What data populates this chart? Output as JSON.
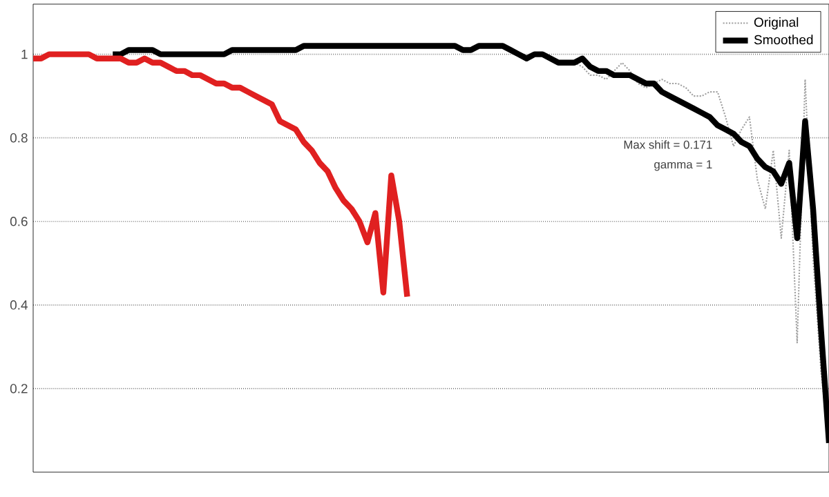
{
  "chart_data": {
    "type": "line",
    "categories": [
      null,
      null,
      null,
      null,
      null,
      null,
      null,
      null,
      null,
      null,
      null,
      null,
      null,
      null,
      null,
      null,
      null,
      null,
      null,
      null,
      null,
      null,
      null,
      null,
      null,
      null,
      null,
      null,
      null,
      null,
      null,
      null,
      null,
      null,
      null,
      null,
      null,
      null,
      null,
      null,
      null,
      null,
      null,
      null,
      null,
      null,
      null,
      null,
      null,
      null,
      null,
      null,
      null,
      null,
      null,
      null,
      null,
      null,
      null,
      null,
      null,
      null,
      null,
      null,
      null,
      null,
      null,
      null,
      null,
      null,
      null,
      null,
      null,
      null,
      null,
      null,
      null,
      null,
      null,
      null,
      null,
      null,
      null,
      null,
      null,
      null,
      null,
      null,
      null,
      null,
      null,
      null,
      null,
      null,
      null,
      null,
      null,
      null,
      null,
      null,
      null
    ],
    "ylim": [
      0,
      1.12
    ],
    "yticks": [
      0.2,
      0.4,
      0.6,
      {
        "value": 0.8,
        "label": "0.8"
      },
      1
    ],
    "grid": "y",
    "legend": "top right",
    "annotations": [
      "Max shift = 0.171",
      "gamma = 1"
    ],
    "series": [
      {
        "name": "Original",
        "color": "#a0a0a0",
        "line_style": "dotted",
        "values": [
          null,
          null,
          null,
          null,
          null,
          null,
          null,
          null,
          null,
          null,
          null,
          null,
          null,
          null,
          null,
          null,
          null,
          null,
          null,
          null,
          null,
          null,
          null,
          null,
          null,
          null,
          null,
          null,
          null,
          null,
          null,
          null,
          null,
          null,
          null,
          null,
          null,
          null,
          null,
          null,
          null,
          null,
          null,
          null,
          null,
          null,
          null,
          null,
          null,
          null,
          null,
          null,
          null,
          null,
          null,
          null,
          null,
          null,
          null,
          null,
          null,
          null,
          null,
          null,
          null,
          null,
          null,
          null,
          0.98,
          0.97,
          0.95,
          0.95,
          0.94,
          0.96,
          0.98,
          0.96,
          0.93,
          0.92,
          0.93,
          0.94,
          0.93,
          0.93,
          0.92,
          0.9,
          0.9,
          0.91,
          0.91,
          0.85,
          0.78,
          0.82,
          0.85,
          0.7,
          0.63,
          0.77,
          0.56,
          0.77,
          0.31,
          0.94,
          0.51,
          0.24,
          0.07
        ]
      },
      {
        "name": "Smoothed",
        "color": "#000000",
        "values": [
          null,
          null,
          null,
          null,
          null,
          null,
          null,
          null,
          null,
          null,
          1.0,
          1.0,
          1.01,
          1.01,
          1.01,
          1.01,
          1.0,
          1.0,
          1.0,
          1.0,
          1.0,
          1.0,
          1.0,
          1.0,
          1.0,
          1.01,
          1.01,
          1.01,
          1.01,
          1.01,
          1.01,
          1.01,
          1.01,
          1.01,
          1.02,
          1.02,
          1.02,
          1.02,
          1.02,
          1.02,
          1.02,
          1.02,
          1.02,
          1.02,
          1.02,
          1.02,
          1.02,
          1.02,
          1.02,
          1.02,
          1.02,
          1.02,
          1.02,
          1.02,
          1.01,
          1.01,
          1.02,
          1.02,
          1.02,
          1.02,
          1.01,
          1.0,
          0.99,
          1.0,
          1.0,
          0.99,
          0.98,
          0.98,
          0.98,
          0.99,
          0.97,
          0.96,
          0.96,
          0.95,
          0.95,
          0.95,
          0.94,
          0.93,
          0.93,
          0.91,
          0.9,
          0.89,
          0.88,
          0.87,
          0.86,
          0.85,
          0.83,
          0.82,
          0.81,
          0.79,
          0.78,
          0.75,
          0.73,
          0.72,
          0.69,
          0.74,
          0.56,
          0.84,
          0.63,
          0.34,
          0.07
        ]
      },
      {
        "color": "#e02020",
        "values": [
          0.99,
          0.99,
          1.0,
          1.0,
          1.0,
          1.0,
          1.0,
          1.0,
          0.99,
          0.99,
          0.99,
          0.99,
          0.98,
          0.98,
          0.99,
          0.98,
          0.98,
          0.97,
          0.96,
          0.96,
          0.95,
          0.95,
          0.94,
          0.93,
          0.93,
          0.92,
          0.92,
          0.91,
          0.9,
          0.89,
          0.88,
          0.84,
          0.83,
          0.82,
          0.79,
          0.77,
          0.74,
          0.72,
          0.68,
          0.65,
          0.63,
          0.6,
          0.55,
          0.62,
          0.43,
          0.71,
          0.6,
          0.42,
          null,
          null,
          null,
          null,
          null,
          null,
          null,
          null,
          null,
          null,
          null,
          null,
          null,
          null,
          null,
          null,
          null,
          null,
          null,
          null,
          null,
          null,
          null,
          null,
          null,
          null,
          null,
          null,
          null,
          null,
          null,
          null,
          null,
          null,
          null,
          null,
          null,
          null,
          null,
          null,
          null,
          null,
          null,
          null,
          null,
          null,
          null,
          null,
          null,
          null,
          null,
          null,
          null
        ]
      }
    ]
  }
}
